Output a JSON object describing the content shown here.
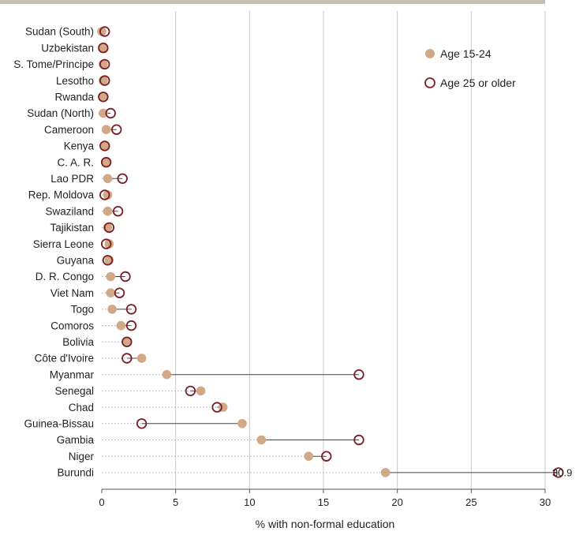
{
  "chart_data": {
    "type": "dot",
    "xlabel": "% with non-formal education",
    "xlim": [
      0,
      30
    ],
    "xticks": [
      0,
      5,
      10,
      15,
      20,
      25,
      30
    ],
    "grid": "vertical",
    "legend_position": "top-right",
    "categories": [
      "Sudan (South)",
      "Uzbekistan",
      "S. Tome/Principe",
      "Lesotho",
      "Rwanda",
      "Sudan (North)",
      "Cameroon",
      "Kenya",
      "C. A. R.",
      "Lao PDR",
      "Rep. Moldova",
      "Swaziland",
      "Tajikistan",
      "Sierra Leone",
      "Guyana",
      "D. R. Congo",
      "Viet Nam",
      "Togo",
      "Comoros",
      "Bolivia",
      "Côte d'Ivoire",
      "Myanmar",
      "Senegal",
      "Chad",
      "Guinea-Bissau",
      "Gambia",
      "Niger",
      "Burundi"
    ],
    "series": [
      {
        "name": "Age 15-24",
        "color": "#D2A987",
        "marker": "filled-circle",
        "values": [
          0.0,
          0.1,
          0.1,
          0.1,
          0.1,
          0.1,
          0.3,
          0.2,
          0.3,
          0.4,
          0.4,
          0.4,
          0.4,
          0.5,
          0.5,
          0.6,
          0.6,
          0.7,
          1.3,
          1.7,
          2.7,
          4.4,
          6.7,
          8.2,
          9.5,
          10.8,
          14.0,
          19.2
        ]
      },
      {
        "name": "Age 25 or older",
        "color": "#7A1E27",
        "marker": "open-circle",
        "values": [
          0.2,
          0.1,
          0.2,
          0.2,
          0.1,
          0.6,
          1.0,
          0.2,
          0.3,
          1.4,
          0.2,
          1.1,
          0.5,
          0.3,
          0.4,
          1.6,
          1.2,
          2.0,
          2.0,
          1.7,
          1.7,
          17.4,
          6.0,
          7.8,
          2.7,
          17.4,
          15.2,
          30.9
        ]
      }
    ],
    "annotations": [
      {
        "category": "Burundi",
        "text": "30.9"
      }
    ]
  }
}
